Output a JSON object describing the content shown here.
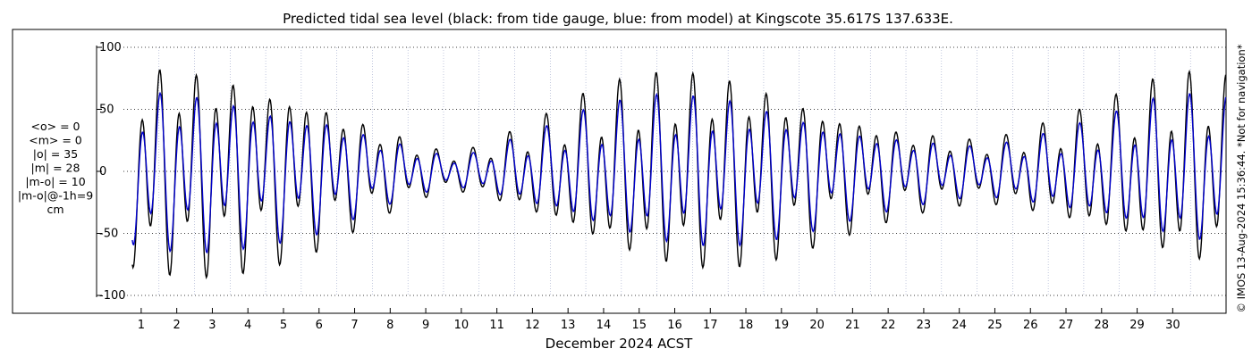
{
  "chart_data": {
    "type": "line",
    "title": "Predicted tidal sea level (black: from tide gauge, blue: from model) at Kingscote 35.617S 137.633E.",
    "xlabel": "December 2024 ACST",
    "ylabel": "",
    "xlim": [
      0,
      31
    ],
    "ylim": [
      -100,
      100
    ],
    "yticks": [
      100,
      50,
      0,
      -50,
      -100
    ],
    "xticks": [
      1,
      2,
      3,
      4,
      5,
      6,
      7,
      8,
      9,
      10,
      11,
      12,
      13,
      14,
      15,
      16,
      17,
      18,
      19,
      20,
      21,
      22,
      23,
      24,
      25,
      26,
      27,
      28,
      29,
      30
    ],
    "grid": true,
    "series_colors": {
      "gauge": "#000000",
      "model": "#0000cc"
    },
    "tidal_range_by_day": {
      "x": [
        0,
        1,
        2,
        3,
        4,
        5,
        6,
        7,
        8,
        9,
        10,
        11,
        12,
        13,
        14,
        15,
        16,
        17,
        18,
        19,
        20,
        21,
        22,
        23,
        24,
        25,
        26,
        27,
        28,
        29,
        30,
        31
      ],
      "gauge_semi_amplitude": [
        75,
        78,
        78,
        75,
        68,
        62,
        50,
        36,
        25,
        15,
        18,
        30,
        42,
        56,
        66,
        72,
        74,
        72,
        66,
        58,
        48,
        40,
        32,
        28,
        24,
        28,
        36,
        45,
        55,
        66,
        72,
        72
      ],
      "model_semi_amplitude": [
        57,
        60,
        60,
        57,
        52,
        48,
        40,
        28,
        20,
        12,
        14,
        24,
        33,
        44,
        51,
        56,
        57,
        56,
        51,
        45,
        38,
        31,
        26,
        22,
        19,
        22,
        28,
        35,
        43,
        52,
        56,
        56
      ]
    },
    "annotations": [
      "<o> = 0",
      "<m> = 0",
      "|o| = 35",
      "|m| = 28",
      "|m-o| = 10",
      "|m-o|@-1h=9",
      "cm"
    ]
  },
  "side_note": "© IMOS 13-Aug-2024 15:36:44. *Not for navigation*"
}
